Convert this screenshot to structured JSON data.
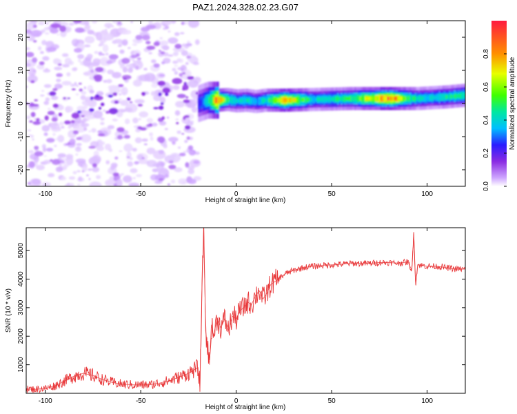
{
  "figure": {
    "title": "PAZ1.2024.328.02.23.G07"
  },
  "chart_data": [
    {
      "type": "heatmap",
      "xlabel": "Height of straight line (km)",
      "ylabel": "Frequency (Hz)",
      "xlim": [
        -110,
        120
      ],
      "ylim": [
        -25,
        25
      ],
      "x_ticks": [
        -100,
        -50,
        0,
        50,
        100
      ],
      "y_ticks": [
        -20,
        -10,
        0,
        10,
        20
      ],
      "colorbar": {
        "label": "Normalized spectral amplitude",
        "range": [
          0.0,
          1.0
        ],
        "ticks": [
          0.0,
          0.2,
          0.4,
          0.6,
          0.8
        ],
        "colors": [
          "#ffffff",
          "#cfa8ff",
          "#8a2be2",
          "#2a1cff",
          "#00bfff",
          "#00e8a0",
          "#40ff00",
          "#e8ff00",
          "#ff9000",
          "#ff1a40"
        ]
      },
      "ridge": {
        "description_points_x": [
          -20,
          -15,
          -10,
          -5,
          0,
          5,
          10,
          15,
          25,
          40,
          60,
          80,
          95,
          110,
          120
        ],
        "frequency": [
          0.0,
          1.0,
          1.0,
          1.2,
          0.8,
          1.0,
          0.6,
          1.0,
          1.0,
          1.2,
          1.5,
          1.5,
          1.5,
          2.0,
          2.5
        ],
        "amplitude": [
          0.35,
          0.55,
          0.95,
          0.6,
          0.5,
          0.55,
          0.45,
          0.55,
          0.9,
          0.5,
          0.6,
          0.95,
          0.5,
          0.55,
          0.6
        ]
      },
      "noise_region_x": [
        -110,
        -20
      ]
    },
    {
      "type": "line",
      "xlabel": "Height of straight line (km)",
      "ylabel": "SNR (10 * v/v)",
      "xlim": [
        -110,
        120
      ],
      "ylim": [
        0,
        5800
      ],
      "x_ticks": [
        -100,
        -50,
        0,
        50,
        100
      ],
      "y_ticks": [
        1000,
        2000,
        3000,
        4000,
        5000
      ],
      "series_color": "#e8383a",
      "series": [
        {
          "x": [
            -110,
            -105,
            -100,
            -95,
            -90,
            -85,
            -80,
            -75,
            -70,
            -65,
            -60,
            -55,
            -50,
            -45,
            -40,
            -35,
            -30,
            -25,
            -20,
            -19,
            -18,
            -17,
            -16,
            -15,
            -14,
            -13,
            -12,
            -10,
            -8,
            -6,
            -4,
            -2,
            0,
            2,
            4,
            6,
            8,
            10,
            12,
            14,
            16,
            18,
            20,
            22,
            24,
            26,
            28,
            30,
            35,
            40,
            45,
            50,
            55,
            60,
            65,
            70,
            75,
            80,
            85,
            90,
            92,
            93,
            94,
            95,
            100,
            105,
            110,
            115,
            120
          ],
          "y": [
            150,
            140,
            170,
            260,
            430,
            600,
            700,
            620,
            480,
            380,
            320,
            300,
            290,
            300,
            360,
            440,
            560,
            700,
            900,
            200,
            3500,
            5800,
            2200,
            1600,
            1000,
            2400,
            2000,
            2600,
            2300,
            2600,
            2200,
            2700,
            2600,
            2900,
            3000,
            3200,
            3100,
            3400,
            3600,
            3300,
            3500,
            3800,
            3900,
            4000,
            4100,
            4200,
            4250,
            4300,
            4400,
            4450,
            4480,
            4500,
            4520,
            4550,
            4550,
            4550,
            4580,
            4580,
            4560,
            4600,
            4300,
            5600,
            3800,
            4500,
            4450,
            4450,
            4400,
            4350,
            4350
          ]
        }
      ]
    }
  ]
}
